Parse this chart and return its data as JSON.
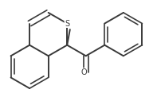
{
  "background_color": "#ffffff",
  "line_color": "#3a3a3a",
  "line_width": 1.4,
  "text_color": "#3a3a3a",
  "font_size_S": 7,
  "font_size_O": 7,
  "font_size_methyl": 6.5
}
